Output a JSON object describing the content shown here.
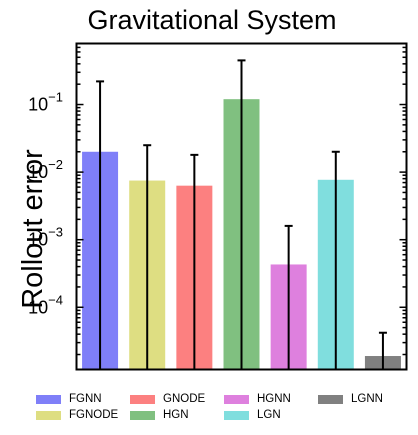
{
  "chart_data": {
    "type": "bar",
    "title": "Gravitational System",
    "xlabel": "",
    "ylabel": "Rollout error",
    "yscale": "log",
    "ylim": [
      1.2e-05,
      0.8
    ],
    "yticks": [
      {
        "value": 0.1,
        "base": "10",
        "exp": "−1"
      },
      {
        "value": 0.01,
        "base": "10",
        "exp": "−2"
      },
      {
        "value": 0.001,
        "base": "10",
        "exp": "−3"
      },
      {
        "value": 0.0001,
        "base": "10",
        "exp": "−4"
      }
    ],
    "series": [
      {
        "name": "FGNN",
        "value": 0.02,
        "err_upper": 0.22,
        "err_lower": 1.2e-05,
        "color": "#7f7ff8"
      },
      {
        "name": "FGNODE",
        "value": 0.0075,
        "err_upper": 0.025,
        "err_lower": 1.2e-05,
        "color": "#dede82"
      },
      {
        "name": "GNODE",
        "value": 0.0063,
        "err_upper": 0.018,
        "err_lower": 1.2e-05,
        "color": "#fc8080"
      },
      {
        "name": "HGN",
        "value": 0.12,
        "err_upper": 0.45,
        "err_lower": 1.2e-05,
        "color": "#80c080"
      },
      {
        "name": "HGNN",
        "value": 0.00043,
        "err_upper": 0.0016,
        "err_lower": 1.2e-05,
        "color": "#de80de"
      },
      {
        "name": "LGN",
        "value": 0.0077,
        "err_upper": 0.02,
        "err_lower": 1.2e-05,
        "color": "#80dede"
      },
      {
        "name": "LGNN",
        "value": 1.9e-05,
        "err_upper": 4.2e-05,
        "err_lower": 1.2e-05,
        "color": "#808080"
      }
    ],
    "grid": false,
    "legend_position": "bottom"
  }
}
